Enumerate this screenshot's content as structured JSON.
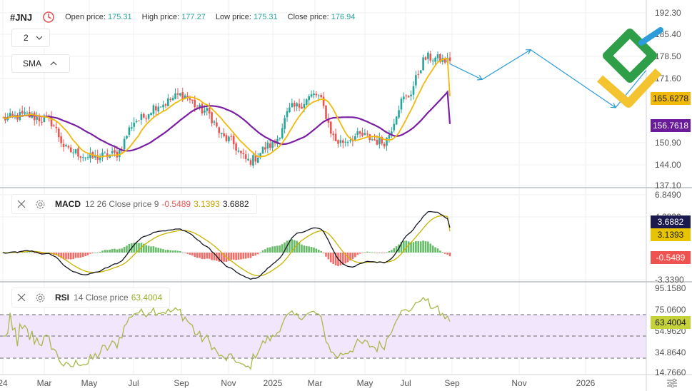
{
  "header": {
    "ticker": "#JNJ",
    "open_label": "Open price:",
    "open_value": "175.31",
    "high_label": "High price:",
    "high_value": "177.27",
    "low_label": "Low price:",
    "low_value": "175.31",
    "close_label": "Close price:",
    "close_value": "176.94"
  },
  "controls": {
    "interval": "2",
    "sma_label": "SMA",
    "macd_name": "MACD",
    "macd_params": "12 26 Close price 9",
    "macd_values": [
      "-0.5489",
      "3.1393",
      "3.6882"
    ],
    "rsi_name": "RSI",
    "rsi_params": "14 Close price",
    "rsi_value": "63.4004"
  },
  "colors": {
    "up": "#26a69a",
    "down": "#ef5350",
    "sma_fast": "#f0b90b",
    "sma_slow": "#7b1fa2",
    "forecast": "#2d9cdb",
    "macd_line": "#131722",
    "signal_line": "#c8b400",
    "rsi_line": "#a8b84a",
    "rsi_band": "#f1e6fb"
  },
  "price_labels": {
    "sma_fast": "165.6278",
    "sma_slow": "156.7618",
    "macd": "3.6882",
    "signal": "3.1393",
    "histogram": "-0.5489",
    "rsi": "63.4004"
  },
  "chart_data": [
    {
      "type": "candlestick",
      "price_axis_ticks": [
        "192.30",
        "185.40",
        "178.50",
        "171.60",
        "165.6278",
        "156.7618",
        "150.90",
        "144.00",
        "137.10"
      ],
      "x_tick_labels": [
        "24",
        "Mar",
        "May",
        "Jul",
        "Sep",
        "Nov",
        "2025",
        "Mar",
        "May",
        "Jul",
        "Sep",
        "Nov",
        "2026"
      ],
      "ylim": [
        137.1,
        192.3
      ],
      "close_path_approx": [
        [
          "Jan 2024",
          158.5
        ],
        [
          "Feb 2024",
          159.5
        ],
        [
          "Mar 2024",
          158
        ],
        [
          "Apr 2024",
          148
        ],
        [
          "May 2024",
          146
        ],
        [
          "Jun 2024",
          147
        ],
        [
          "Jul 2024",
          158
        ],
        [
          "Aug 2024",
          163
        ],
        [
          "Sep 2024",
          166
        ],
        [
          "Oct 2024",
          161
        ],
        [
          "Nov 2024",
          152
        ],
        [
          "Dec 2024",
          145
        ],
        [
          "Jan 2025",
          150
        ],
        [
          "Feb 2025",
          162
        ],
        [
          "Mar 2025",
          166
        ],
        [
          "Apr 2025",
          151
        ],
        [
          "May 2025",
          153
        ],
        [
          "Jun 2025",
          151
        ],
        [
          "Jul 2025",
          165
        ],
        [
          "Aug 2025",
          178
        ],
        [
          "Sep 2025",
          176.9
        ]
      ],
      "forecast_path": [
        [
          "Sep 2025",
          176
        ],
        [
          "Oct 2025",
          171
        ],
        [
          "Nov 2025",
          180.5
        ],
        [
          "Jan 2026",
          162
        ],
        [
          "Feb 2026",
          174
        ]
      ],
      "series": [
        {
          "name": "SMA",
          "last_value": 165.6278
        },
        {
          "name": "SMA",
          "last_value": 156.7618
        }
      ]
    },
    {
      "type": "line",
      "name": "MACD",
      "params": "12 26 Close price 9",
      "y_ticks": [
        "6.8490",
        "4.2830",
        "3.6882",
        "3.1393",
        "-0.5489",
        "-3.3390"
      ],
      "series": [
        {
          "name": "MACD",
          "last_value": 3.6882
        },
        {
          "name": "Signal",
          "last_value": 3.1393
        },
        {
          "name": "Histogram",
          "last_value": -0.5489
        }
      ]
    },
    {
      "type": "line",
      "name": "RSI",
      "params": "14 Close price",
      "y_ticks": [
        "95.1580",
        "75.0600",
        "63.4004",
        "54.9620",
        "34.8640",
        "14.7660"
      ],
      "bands": [
        70,
        50,
        30
      ],
      "series": [
        {
          "name": "RSI",
          "last_value": 63.4004
        }
      ]
    }
  ]
}
